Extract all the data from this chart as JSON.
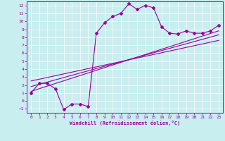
{
  "title": "",
  "xlabel": "Windchill (Refroidissement éolien,°C)",
  "xlim": [
    -0.5,
    23.5
  ],
  "ylim": [
    -1.5,
    12.5
  ],
  "xticks": [
    0,
    1,
    2,
    3,
    4,
    5,
    6,
    7,
    8,
    9,
    10,
    11,
    12,
    13,
    14,
    15,
    16,
    17,
    18,
    19,
    20,
    21,
    22,
    23
  ],
  "yticks": [
    -1,
    0,
    1,
    2,
    3,
    4,
    5,
    6,
    7,
    8,
    9,
    10,
    11,
    12
  ],
  "bg_color": "#c8eef0",
  "line_color": "#990099",
  "curve_x": [
    0,
    1,
    2,
    3,
    4,
    5,
    6,
    7,
    8,
    9,
    10,
    11,
    12,
    13,
    14,
    15,
    16,
    17,
    18,
    19,
    20,
    21,
    22,
    23
  ],
  "curve_y": [
    1.0,
    2.2,
    2.2,
    1.5,
    -1.1,
    -0.4,
    -0.4,
    -0.7,
    8.5,
    9.8,
    10.6,
    11.0,
    12.2,
    11.5,
    12.0,
    11.7,
    9.3,
    8.5,
    8.4,
    8.8,
    8.5,
    8.5,
    8.8,
    9.5
  ],
  "reg_lines": [
    {
      "x": [
        0,
        23
      ],
      "y": [
        1.2,
        8.8
      ]
    },
    {
      "x": [
        0,
        23
      ],
      "y": [
        1.8,
        8.3
      ]
    },
    {
      "x": [
        0,
        23
      ],
      "y": [
        2.5,
        7.6
      ]
    }
  ],
  "lw": 0.8,
  "marker_size": 2.0,
  "tick_fontsize": 4.5,
  "xlabel_fontsize": 5.0
}
